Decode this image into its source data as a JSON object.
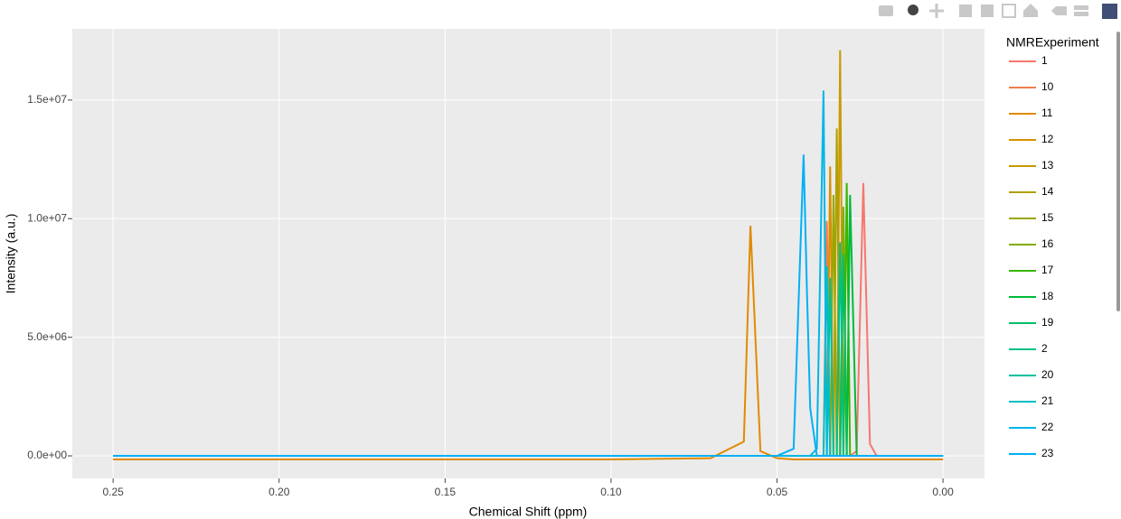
{
  "chart_data": {
    "type": "line",
    "xlabel": "Chemical Shift (ppm)",
    "ylabel": "Intensity (a.u.)",
    "legend_title": "NMRExperiment",
    "xlim": [
      0.2623,
      -0.0125
    ],
    "ylim": [
      -950000,
      18000000
    ],
    "xticks": [
      0.25,
      {
        "value": 0.2,
        "label": "0.20"
      },
      0.15,
      {
        "value": 0.1,
        "label": "0.10"
      },
      0.05,
      {
        "value": 0,
        "label": "0.00"
      }
    ],
    "yticks": [
      {
        "value": 0,
        "label": "0.0e+00"
      },
      {
        "value": 5000000,
        "label": "5.0e+06"
      },
      {
        "value": 10000000,
        "label": "1.0e+07"
      },
      {
        "value": 15000000,
        "label": "1.5e+07"
      }
    ],
    "grid": true,
    "x": [
      0.25,
      0.2,
      0.15,
      0.1,
      0.07,
      0.06,
      0.058,
      0.055,
      0.05,
      0.045,
      0.042,
      0.041,
      0.04,
      0.038,
      0.036,
      0.035,
      0.034,
      0.033,
      0.032,
      0.031,
      0.03,
      0.029,
      0.028,
      0.026,
      0.024,
      0.022,
      0.02,
      0.01,
      0
    ],
    "series": [
      {
        "name": "1",
        "color": "#f8766d",
        "values": [
          0,
          0,
          0,
          0,
          0,
          0,
          0,
          0,
          0,
          0,
          0,
          0,
          0,
          0,
          0,
          0,
          0,
          0,
          0,
          0,
          0,
          0,
          0,
          200000,
          11500000,
          500000,
          0,
          0,
          0
        ]
      },
      {
        "name": "10",
        "color": "#f17e4c",
        "values": [
          0,
          0,
          0,
          0,
          0,
          0,
          0,
          0,
          0,
          0,
          0,
          0,
          0,
          0,
          0,
          9900000,
          0,
          0,
          0,
          0,
          0,
          0,
          0,
          0,
          0,
          0,
          0,
          0,
          0
        ]
      },
      {
        "name": "11",
        "color": "#e18a00",
        "values": [
          -150000,
          -150000,
          -150000,
          -150000,
          -100000,
          600000,
          9700000,
          200000,
          -100000,
          -150000,
          -150000,
          -150000,
          -150000,
          -150000,
          -150000,
          -150000,
          -150000,
          -150000,
          -150000,
          -150000,
          -150000,
          -150000,
          -150000,
          -150000,
          -150000,
          -150000,
          -150000,
          -150000,
          -150000
        ]
      },
      {
        "name": "12",
        "color": "#d89000",
        "values": [
          0,
          0,
          0,
          0,
          0,
          0,
          0,
          0,
          0,
          0,
          0,
          0,
          0,
          0,
          0,
          0,
          12200000,
          0,
          0,
          0,
          0,
          0,
          0,
          0,
          0,
          0,
          0,
          0,
          0
        ]
      },
      {
        "name": "13",
        "color": "#c89a00",
        "values": [
          0,
          0,
          0,
          0,
          0,
          0,
          0,
          0,
          0,
          0,
          0,
          0,
          0,
          0,
          0,
          0,
          0,
          0,
          0,
          17100000,
          0,
          0,
          0,
          0,
          0,
          0,
          0,
          0,
          0
        ]
      },
      {
        "name": "14",
        "color": "#b0a000",
        "values": [
          0,
          0,
          0,
          0,
          0,
          0,
          0,
          0,
          0,
          0,
          0,
          0,
          0,
          0,
          0,
          0,
          0,
          0,
          13800000,
          0,
          0,
          0,
          0,
          0,
          0,
          0,
          0,
          0,
          0
        ]
      },
      {
        "name": "15",
        "color": "#9aa600",
        "values": [
          0,
          0,
          0,
          0,
          0,
          0,
          0,
          0,
          0,
          0,
          0,
          0,
          0,
          0,
          0,
          0,
          0,
          11000000,
          0,
          0,
          0,
          0,
          0,
          0,
          0,
          0,
          0,
          0,
          0
        ]
      },
      {
        "name": "16",
        "color": "#7fad00",
        "values": [
          0,
          0,
          0,
          0,
          0,
          0,
          0,
          0,
          0,
          0,
          0,
          0,
          0,
          0,
          0,
          0,
          0,
          0,
          0,
          0,
          10500000,
          0,
          0,
          0,
          0,
          0,
          0,
          0,
          0
        ]
      },
      {
        "name": "17",
        "color": "#39b600",
        "values": [
          0,
          0,
          0,
          0,
          0,
          0,
          0,
          0,
          0,
          0,
          0,
          0,
          0,
          0,
          0,
          0,
          0,
          0,
          0,
          0,
          0,
          11500000,
          0,
          0,
          0,
          0,
          0,
          0,
          0
        ]
      },
      {
        "name": "18",
        "color": "#00ba38",
        "values": [
          0,
          0,
          0,
          0,
          0,
          0,
          0,
          0,
          0,
          0,
          0,
          0,
          0,
          0,
          0,
          0,
          0,
          0,
          0,
          0,
          0,
          0,
          11000000,
          0,
          0,
          0,
          0,
          0,
          0
        ]
      },
      {
        "name": "19",
        "color": "#00be67",
        "values": [
          0,
          0,
          0,
          0,
          0,
          0,
          0,
          0,
          0,
          0,
          0,
          0,
          0,
          0,
          0,
          0,
          0,
          0,
          0,
          0,
          8500000,
          0,
          0,
          0,
          0,
          0,
          0,
          0,
          0
        ]
      },
      {
        "name": "2",
        "color": "#00c08b",
        "values": [
          0,
          0,
          0,
          0,
          0,
          0,
          0,
          0,
          0,
          0,
          0,
          0,
          0,
          0,
          0,
          0,
          0,
          0,
          0,
          9000000,
          0,
          0,
          0,
          0,
          0,
          0,
          0,
          0,
          0
        ]
      },
      {
        "name": "20",
        "color": "#00c1a0",
        "values": [
          0,
          0,
          0,
          0,
          0,
          0,
          0,
          0,
          0,
          0,
          0,
          0,
          0,
          0,
          0,
          0,
          7500000,
          0,
          0,
          0,
          0,
          0,
          0,
          0,
          0,
          0,
          0,
          0,
          0
        ]
      },
      {
        "name": "21",
        "color": "#00bfc4",
        "values": [
          0,
          0,
          0,
          0,
          0,
          0,
          0,
          0,
          0,
          0,
          0,
          0,
          0,
          0,
          0,
          8000000,
          0,
          0,
          0,
          0,
          0,
          0,
          0,
          0,
          0,
          0,
          0,
          0,
          0
        ]
      },
      {
        "name": "22",
        "color": "#00b6e8",
        "values": [
          0,
          0,
          0,
          0,
          0,
          0,
          0,
          0,
          0,
          0,
          0,
          0,
          0,
          300000,
          15400000,
          0,
          0,
          0,
          0,
          0,
          0,
          0,
          0,
          0,
          0,
          0,
          0,
          0,
          0
        ]
      },
      {
        "name": "23",
        "color": "#00b0f6",
        "values": [
          0,
          0,
          0,
          0,
          0,
          0,
          0,
          0,
          0,
          300000,
          12700000,
          7000000,
          2000000,
          0,
          0,
          0,
          0,
          0,
          0,
          0,
          0,
          0,
          0,
          0,
          0,
          0,
          0,
          0,
          0
        ]
      }
    ]
  }
}
